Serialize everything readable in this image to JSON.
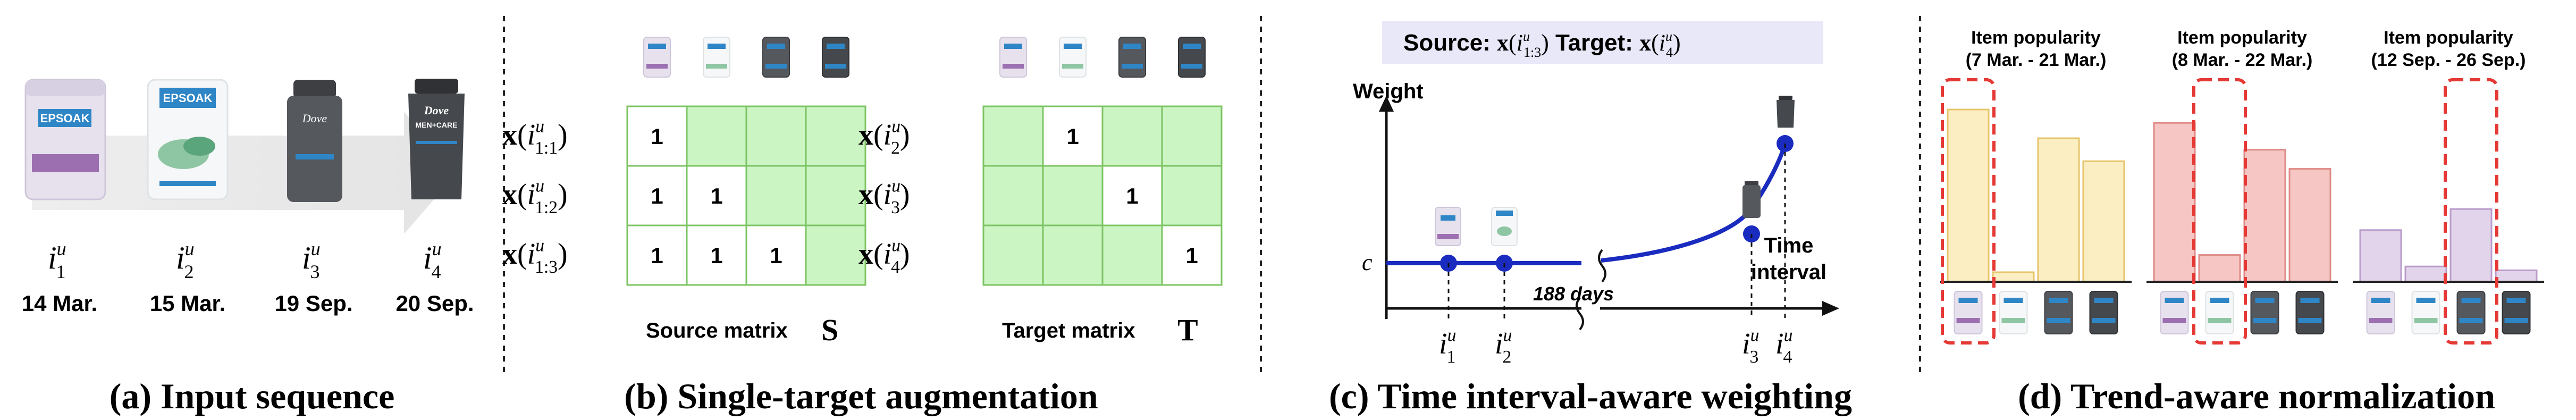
{
  "panel_a": {
    "items": [
      {
        "sym_base": "i",
        "sym_sub": "1",
        "sym_sup": "u",
        "date": "14 Mar."
      },
      {
        "sym_base": "i",
        "sym_sub": "2",
        "sym_sup": "u",
        "date": "15 Mar."
      },
      {
        "sym_base": "i",
        "sym_sub": "3",
        "sym_sup": "u",
        "date": "19 Sep."
      },
      {
        "sym_base": "i",
        "sym_sub": "4",
        "sym_sup": "u",
        "date": "20 Sep."
      }
    ],
    "product_labels": [
      "EPSOAK",
      "EPSOAK",
      "Dove",
      "Dove MEN+CARE"
    ],
    "caption": "(a) Input sequence"
  },
  "panel_b": {
    "source_rows": [
      {
        "x": "x",
        "open": "(",
        "base": "i",
        "sub": "1:1",
        "sup": "u",
        "close": ")"
      },
      {
        "x": "x",
        "open": "(",
        "base": "i",
        "sub": "1:2",
        "sup": "u",
        "close": ")"
      },
      {
        "x": "x",
        "open": "(",
        "base": "i",
        "sub": "1:3",
        "sup": "u",
        "close": ")"
      }
    ],
    "target_rows": [
      {
        "x": "x",
        "open": "(",
        "base": "i",
        "sub": "2",
        "sup": "u",
        "close": ")"
      },
      {
        "x": "x",
        "open": "(",
        "base": "i",
        "sub": "3",
        "sup": "u",
        "close": ")"
      },
      {
        "x": "x",
        "open": "(",
        "base": "i",
        "sub": "4",
        "sup": "u",
        "close": ")"
      }
    ],
    "source_matrix": [
      [
        "1",
        "",
        "",
        ""
      ],
      [
        "1",
        "1",
        "",
        ""
      ],
      [
        "1",
        "1",
        "1",
        ""
      ]
    ],
    "target_matrix": [
      [
        "",
        "1",
        "",
        ""
      ],
      [
        "",
        "",
        "1",
        ""
      ],
      [
        "",
        "",
        "",
        "1"
      ]
    ],
    "source_label": "Source matrix",
    "source_symbol": "S",
    "target_label": "Target matrix",
    "target_symbol": "T",
    "caption": "(b) Single-target augmentation"
  },
  "panel_c": {
    "legend_source": "Source:",
    "legend_source_math": "x(i",
    "legend_source_sub": "1:3",
    "legend_source_sup": "u",
    "legend_target": "Target:",
    "legend_target_math": "x(i",
    "legend_target_sub": "4",
    "legend_target_sup": "u",
    "close_paren": ")",
    "y_axis": "Weight",
    "c_label": "c",
    "x_axis_line1": "Time",
    "x_axis_line2": "interval",
    "gap_label": "188 days",
    "ticks": [
      {
        "base": "i",
        "sub": "1",
        "sup": "u"
      },
      {
        "base": "i",
        "sub": "2",
        "sup": "u"
      },
      {
        "base": "i",
        "sub": "3",
        "sup": "u"
      },
      {
        "base": "i",
        "sub": "4",
        "sup": "u"
      }
    ],
    "caption": "(c) Time interval-aware weighting"
  },
  "panel_d": {
    "groups": [
      {
        "title1": "Item popularity",
        "title2": "(7 Mar. - 21 Mar.)",
        "values": [
          0.9,
          0.05,
          0.75,
          0.63
        ],
        "highlight": 0
      },
      {
        "title1": "Item popularity",
        "title2": "(8 Mar. - 22 Mar.)",
        "values": [
          0.83,
          0.14,
          0.69,
          0.59
        ],
        "highlight": 1
      },
      {
        "title1": "Item popularity",
        "title2": "(12 Sep. - 26 Sep.)",
        "values": [
          0.27,
          0.08,
          0.38,
          0.06
        ],
        "highlight": 2
      }
    ],
    "colors": {
      "group1": "#fbeec2",
      "group2": "#f6c6c4",
      "group3": "#e2d4ea",
      "group1_edge": "#e6c46a",
      "group2_edge": "#de8a86",
      "group3_edge": "#b99ccb",
      "highlight": "#e53935"
    },
    "caption": "(d) Trend-aware normalization"
  }
}
